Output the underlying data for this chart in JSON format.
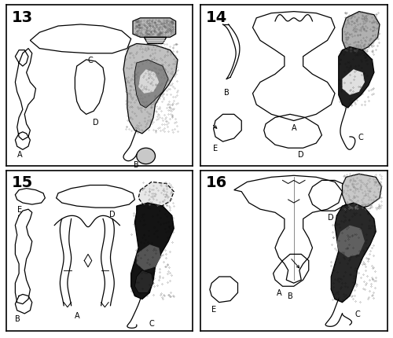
{
  "figure_size": [
    5.0,
    4.3
  ],
  "dpi": 100,
  "background_color": "#ffffff",
  "border_color": "#000000",
  "panel_numbers": [
    "13",
    "14",
    "15",
    "16"
  ],
  "label_fontsize": 7,
  "number_fontsize": 14,
  "line_color": "#000000",
  "lw": 0.9
}
